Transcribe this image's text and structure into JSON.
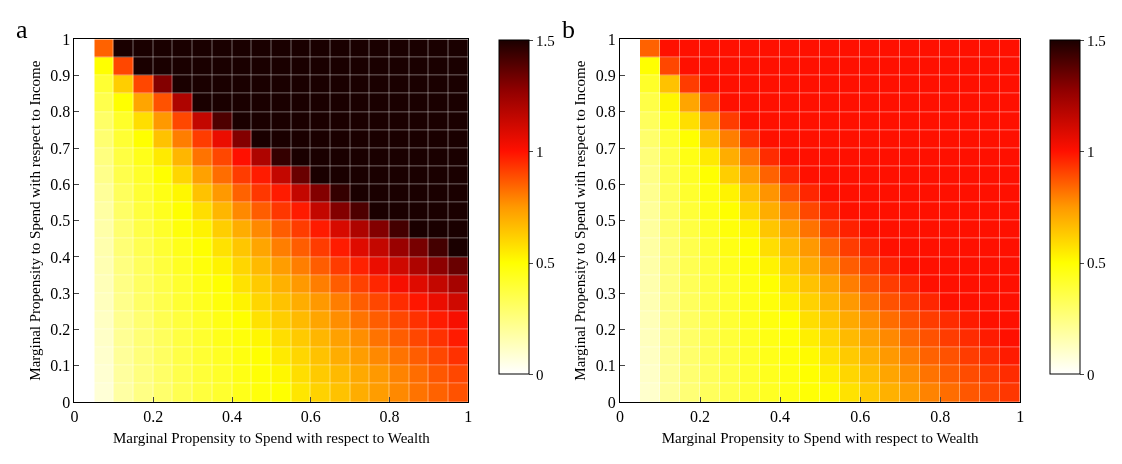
{
  "chart_data": [
    {
      "type": "heatmap",
      "title": "a",
      "xlabel": "Marginal Propensity to Spend with respect to Wealth",
      "ylabel": "Marginal Propensity to Spend with respect to Income",
      "x": [
        0.025,
        0.075,
        0.125,
        0.175,
        0.225,
        0.275,
        0.325,
        0.375,
        0.425,
        0.475,
        0.525,
        0.575,
        0.625,
        0.675,
        0.725,
        0.775,
        0.825,
        0.875,
        0.925,
        0.975
      ],
      "y": [
        0.975,
        0.925,
        0.875,
        0.825,
        0.775,
        0.725,
        0.675,
        0.625,
        0.575,
        0.525,
        0.475,
        0.425,
        0.375,
        0.325,
        0.275,
        0.225,
        0.175,
        0.125,
        0.075,
        0.025
      ],
      "xlim": [
        0,
        1
      ],
      "ylim": [
        0,
        1
      ],
      "xticks": [
        0,
        0.2,
        0.4,
        0.6,
        0.8,
        1
      ],
      "yticks": [
        0,
        0.1,
        0.2,
        0.3,
        0.4,
        0.5,
        0.6,
        0.7,
        0.8,
        0.9,
        1
      ],
      "clim": [
        0,
        1.5
      ],
      "cticks": [
        0,
        0.5,
        1,
        1.5
      ],
      "cells": [
        [
          0,
          0.85,
          1.5,
          1.5,
          1.5,
          1.5,
          1.5,
          1.5,
          1.5,
          1.5,
          1.5,
          1.5,
          1.5,
          1.5,
          1.5,
          1.5,
          1.5,
          1.5,
          1.5,
          1.5
        ],
        [
          0,
          0.5,
          0.9,
          1.5,
          1.5,
          1.5,
          1.5,
          1.5,
          1.5,
          1.5,
          1.5,
          1.5,
          1.5,
          1.5,
          1.5,
          1.5,
          1.5,
          1.5,
          1.5,
          1.5
        ],
        [
          0,
          0.4,
          0.62,
          0.9,
          1.3,
          1.5,
          1.5,
          1.5,
          1.5,
          1.5,
          1.5,
          1.5,
          1.5,
          1.5,
          1.5,
          1.5,
          1.5,
          1.5,
          1.5,
          1.5
        ],
        [
          0,
          0.35,
          0.5,
          0.72,
          0.88,
          1.2,
          1.5,
          1.5,
          1.5,
          1.5,
          1.5,
          1.5,
          1.5,
          1.5,
          1.5,
          1.5,
          1.5,
          1.5,
          1.5,
          1.5
        ],
        [
          0,
          0.3,
          0.42,
          0.58,
          0.75,
          0.9,
          1.15,
          1.4,
          1.5,
          1.5,
          1.5,
          1.5,
          1.5,
          1.5,
          1.5,
          1.5,
          1.5,
          1.5,
          1.5,
          1.5
        ],
        [
          0,
          0.28,
          0.4,
          0.5,
          0.65,
          0.8,
          0.92,
          1.05,
          1.3,
          1.5,
          1.5,
          1.5,
          1.5,
          1.5,
          1.5,
          1.5,
          1.5,
          1.5,
          1.5,
          1.5
        ],
        [
          0,
          0.25,
          0.37,
          0.45,
          0.55,
          0.68,
          0.82,
          0.9,
          1.0,
          1.2,
          1.45,
          1.5,
          1.5,
          1.5,
          1.5,
          1.5,
          1.5,
          1.5,
          1.5,
          1.5
        ],
        [
          0,
          0.23,
          0.35,
          0.42,
          0.5,
          0.6,
          0.73,
          0.83,
          0.92,
          0.98,
          1.15,
          1.35,
          1.5,
          1.5,
          1.5,
          1.5,
          1.5,
          1.5,
          1.5,
          1.5
        ],
        [
          0,
          0.2,
          0.32,
          0.4,
          0.46,
          0.52,
          0.65,
          0.75,
          0.85,
          0.93,
          0.98,
          1.15,
          1.3,
          1.45,
          1.5,
          1.5,
          1.5,
          1.5,
          1.5,
          1.5
        ],
        [
          0,
          0.18,
          0.3,
          0.38,
          0.44,
          0.5,
          0.58,
          0.68,
          0.78,
          0.86,
          0.93,
          0.98,
          1.15,
          1.3,
          1.4,
          1.5,
          1.5,
          1.5,
          1.5,
          1.5
        ],
        [
          0,
          0.17,
          0.28,
          0.36,
          0.42,
          0.48,
          0.53,
          0.62,
          0.7,
          0.78,
          0.86,
          0.92,
          0.98,
          1.1,
          1.2,
          1.3,
          1.42,
          1.5,
          1.5,
          1.5
        ],
        [
          0,
          0.16,
          0.27,
          0.34,
          0.4,
          0.45,
          0.5,
          0.57,
          0.64,
          0.72,
          0.8,
          0.86,
          0.92,
          0.98,
          1.08,
          1.15,
          1.25,
          1.32,
          1.42,
          1.5
        ],
        [
          0,
          0.15,
          0.25,
          0.32,
          0.38,
          0.43,
          0.48,
          0.53,
          0.6,
          0.67,
          0.74,
          0.8,
          0.86,
          0.92,
          0.97,
          1.05,
          1.12,
          1.2,
          1.28,
          1.35
        ],
        [
          0,
          0.14,
          0.24,
          0.31,
          0.36,
          0.41,
          0.46,
          0.5,
          0.57,
          0.63,
          0.69,
          0.75,
          0.8,
          0.86,
          0.91,
          0.96,
          1.02,
          1.08,
          1.15,
          1.22
        ],
        [
          0,
          0.13,
          0.23,
          0.3,
          0.35,
          0.4,
          0.44,
          0.48,
          0.53,
          0.6,
          0.65,
          0.7,
          0.75,
          0.8,
          0.86,
          0.9,
          0.95,
          0.99,
          1.05,
          1.12
        ],
        [
          0,
          0.12,
          0.22,
          0.28,
          0.34,
          0.38,
          0.42,
          0.46,
          0.5,
          0.57,
          0.62,
          0.67,
          0.72,
          0.77,
          0.82,
          0.86,
          0.9,
          0.94,
          0.98,
          1.02
        ],
        [
          0,
          0.11,
          0.21,
          0.27,
          0.32,
          0.37,
          0.41,
          0.45,
          0.48,
          0.52,
          0.58,
          0.63,
          0.68,
          0.73,
          0.77,
          0.82,
          0.86,
          0.9,
          0.94,
          0.98
        ],
        [
          0,
          0.1,
          0.2,
          0.26,
          0.31,
          0.36,
          0.4,
          0.43,
          0.47,
          0.5,
          0.55,
          0.6,
          0.65,
          0.7,
          0.74,
          0.78,
          0.82,
          0.86,
          0.9,
          0.94
        ],
        [
          0,
          0.09,
          0.19,
          0.25,
          0.3,
          0.35,
          0.39,
          0.42,
          0.46,
          0.49,
          0.52,
          0.58,
          0.63,
          0.67,
          0.71,
          0.75,
          0.79,
          0.83,
          0.87,
          0.9
        ],
        [
          0,
          0.08,
          0.18,
          0.24,
          0.29,
          0.34,
          0.38,
          0.41,
          0.45,
          0.48,
          0.5,
          0.56,
          0.61,
          0.65,
          0.7,
          0.74,
          0.78,
          0.82,
          0.85,
          0.88
        ]
      ]
    },
    {
      "type": "heatmap",
      "title": "b",
      "xlabel": "Marginal Propensity to Spend with respect to Wealth",
      "ylabel": "Marginal Propensity to Spend with respect to Income",
      "x": [
        0.025,
        0.075,
        0.125,
        0.175,
        0.225,
        0.275,
        0.325,
        0.375,
        0.425,
        0.475,
        0.525,
        0.575,
        0.625,
        0.675,
        0.725,
        0.775,
        0.825,
        0.875,
        0.925,
        0.975
      ],
      "y": [
        0.975,
        0.925,
        0.875,
        0.825,
        0.775,
        0.725,
        0.675,
        0.625,
        0.575,
        0.525,
        0.475,
        0.425,
        0.375,
        0.325,
        0.275,
        0.225,
        0.175,
        0.125,
        0.075,
        0.025
      ],
      "xlim": [
        0,
        1
      ],
      "ylim": [
        0,
        1
      ],
      "xticks": [
        0,
        0.2,
        0.4,
        0.6,
        0.8,
        1
      ],
      "yticks": [
        0,
        0.1,
        0.2,
        0.3,
        0.4,
        0.5,
        0.6,
        0.7,
        0.8,
        0.9,
        1
      ],
      "clim": [
        0,
        1.5
      ],
      "cticks": [
        0,
        0.5,
        1,
        1.5
      ],
      "cells": [
        [
          0,
          0.85,
          1,
          1,
          1,
          1,
          1,
          1,
          1,
          1,
          1,
          1,
          1,
          1,
          1,
          1,
          1,
          1,
          1,
          1
        ],
        [
          0,
          0.5,
          0.9,
          1,
          1,
          1,
          1,
          1,
          1,
          1,
          1,
          1,
          1,
          1,
          1,
          1,
          1,
          1,
          1,
          1
        ],
        [
          0,
          0.42,
          0.65,
          0.92,
          1,
          1,
          1,
          1,
          1,
          1,
          1,
          1,
          1,
          1,
          1,
          1,
          1,
          1,
          1,
          1
        ],
        [
          0,
          0.36,
          0.52,
          0.72,
          0.9,
          1,
          1,
          1,
          1,
          1,
          1,
          1,
          1,
          1,
          1,
          1,
          1,
          1,
          1,
          1
        ],
        [
          0,
          0.32,
          0.45,
          0.58,
          0.75,
          0.92,
          1,
          1,
          1,
          1,
          1,
          1,
          1,
          1,
          1,
          1,
          1,
          1,
          1,
          1
        ],
        [
          0,
          0.29,
          0.4,
          0.5,
          0.65,
          0.8,
          0.94,
          1,
          1,
          1,
          1,
          1,
          1,
          1,
          1,
          1,
          1,
          1,
          1,
          1
        ],
        [
          0,
          0.26,
          0.37,
          0.46,
          0.55,
          0.7,
          0.82,
          0.95,
          1,
          1,
          1,
          1,
          1,
          1,
          1,
          1,
          1,
          1,
          1,
          1
        ],
        [
          0,
          0.24,
          0.35,
          0.43,
          0.5,
          0.62,
          0.74,
          0.85,
          0.96,
          1,
          1,
          1,
          1,
          1,
          1,
          1,
          1,
          1,
          1,
          1
        ],
        [
          0,
          0.22,
          0.33,
          0.41,
          0.47,
          0.53,
          0.66,
          0.76,
          0.88,
          0.96,
          1,
          1,
          1,
          1,
          1,
          1,
          1,
          1,
          1,
          1
        ],
        [
          0,
          0.2,
          0.31,
          0.39,
          0.45,
          0.5,
          0.6,
          0.7,
          0.8,
          0.9,
          0.97,
          1,
          1,
          1,
          1,
          1,
          1,
          1,
          1,
          1
        ],
        [
          0,
          0.19,
          0.3,
          0.37,
          0.43,
          0.48,
          0.53,
          0.64,
          0.73,
          0.82,
          0.92,
          0.97,
          1,
          1,
          1,
          1,
          1,
          1,
          1,
          1
        ],
        [
          0,
          0.18,
          0.28,
          0.35,
          0.41,
          0.46,
          0.5,
          0.58,
          0.67,
          0.75,
          0.84,
          0.92,
          0.97,
          1,
          1,
          1,
          1,
          1,
          1,
          1
        ],
        [
          0,
          0.17,
          0.27,
          0.34,
          0.39,
          0.44,
          0.48,
          0.53,
          0.62,
          0.7,
          0.78,
          0.86,
          0.92,
          0.97,
          1,
          1,
          1,
          1,
          1,
          1
        ],
        [
          0,
          0.16,
          0.26,
          0.33,
          0.38,
          0.42,
          0.46,
          0.5,
          0.58,
          0.65,
          0.72,
          0.8,
          0.87,
          0.92,
          0.96,
          1,
          1,
          1,
          1,
          1
        ],
        [
          0,
          0.15,
          0.25,
          0.32,
          0.37,
          0.41,
          0.45,
          0.48,
          0.54,
          0.61,
          0.68,
          0.75,
          0.82,
          0.88,
          0.92,
          0.96,
          1,
          1,
          1,
          1
        ],
        [
          0,
          0.14,
          0.24,
          0.31,
          0.36,
          0.4,
          0.44,
          0.47,
          0.5,
          0.58,
          0.64,
          0.71,
          0.77,
          0.83,
          0.88,
          0.92,
          0.95,
          0.98,
          1,
          1
        ],
        [
          0,
          0.13,
          0.23,
          0.3,
          0.35,
          0.39,
          0.43,
          0.46,
          0.49,
          0.54,
          0.6,
          0.67,
          0.73,
          0.78,
          0.84,
          0.88,
          0.92,
          0.95,
          0.98,
          1
        ],
        [
          0,
          0.12,
          0.22,
          0.29,
          0.34,
          0.38,
          0.42,
          0.45,
          0.48,
          0.51,
          0.57,
          0.63,
          0.69,
          0.75,
          0.8,
          0.85,
          0.88,
          0.92,
          0.95,
          0.98
        ],
        [
          0,
          0.11,
          0.21,
          0.28,
          0.33,
          0.37,
          0.41,
          0.44,
          0.47,
          0.5,
          0.54,
          0.6,
          0.66,
          0.72,
          0.77,
          0.82,
          0.86,
          0.89,
          0.92,
          0.95
        ],
        [
          0,
          0.1,
          0.2,
          0.27,
          0.32,
          0.36,
          0.4,
          0.43,
          0.46,
          0.49,
          0.51,
          0.57,
          0.63,
          0.69,
          0.74,
          0.79,
          0.83,
          0.87,
          0.9,
          0.93
        ]
      ]
    }
  ]
}
